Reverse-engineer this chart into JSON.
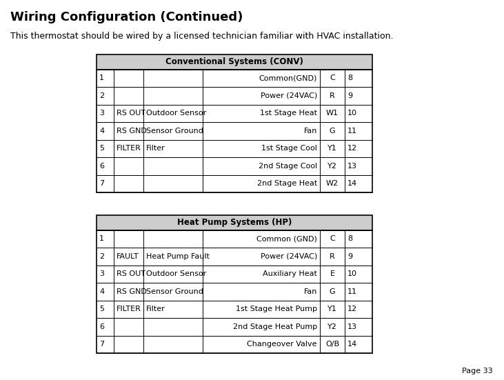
{
  "title": "Wiring Configuration (Continued)",
  "subtitle": "This thermostat should be wired by a licensed technician familiar with HVAC installation.",
  "page": "Page 33",
  "table1_header": "Conventional Systems (CONV)",
  "table1_rows": [
    [
      "1",
      "",
      "",
      "Common(GND)",
      "C",
      "8"
    ],
    [
      "2",
      "",
      "",
      "Power (24VAC)",
      "R",
      "9"
    ],
    [
      "3",
      "RS OUT",
      "Outdoor Sensor",
      "1st Stage Heat",
      "W1",
      "10"
    ],
    [
      "4",
      "RS GND",
      "Sensor Ground",
      "Fan",
      "G",
      "11"
    ],
    [
      "5",
      "FILTER",
      "Filter",
      "1st Stage Cool",
      "Y1",
      "12"
    ],
    [
      "6",
      "",
      "",
      "2nd Stage Cool",
      "Y2",
      "13"
    ],
    [
      "7",
      "",
      "",
      "2nd Stage Heat",
      "W2",
      "14"
    ]
  ],
  "table2_header": "Heat Pump Systems (HP)",
  "table2_rows": [
    [
      "1",
      "",
      "",
      "Common (GND)",
      "C",
      "8"
    ],
    [
      "2",
      "FAULT",
      "Heat Pump Fault",
      "Power (24VAC)",
      "R",
      "9"
    ],
    [
      "3",
      "RS OUT",
      "Outdoor Sensor",
      "Auxiliary Heat",
      "E",
      "10"
    ],
    [
      "4",
      "RS GND",
      "Sensor Ground",
      "Fan",
      "G",
      "11"
    ],
    [
      "5",
      "FILTER",
      "Filter",
      "1st Stage Heat Pump",
      "Y1",
      "12"
    ],
    [
      "6",
      "",
      "",
      "2nd Stage Heat Pump",
      "Y2",
      "13"
    ],
    [
      "7",
      "",
      "",
      "Changeover Valve",
      "O/B",
      "14"
    ]
  ],
  "bg_color": "#ffffff",
  "header_bg": "#cccccc",
  "border_color": "#000000",
  "text_color": "#000000",
  "title_fontsize": 13,
  "subtitle_fontsize": 9,
  "table_fontsize": 8,
  "header_fontsize": 8.5,
  "page_fontsize": 8,
  "fig_w": 7.31,
  "fig_h": 5.51,
  "dpi": 100
}
